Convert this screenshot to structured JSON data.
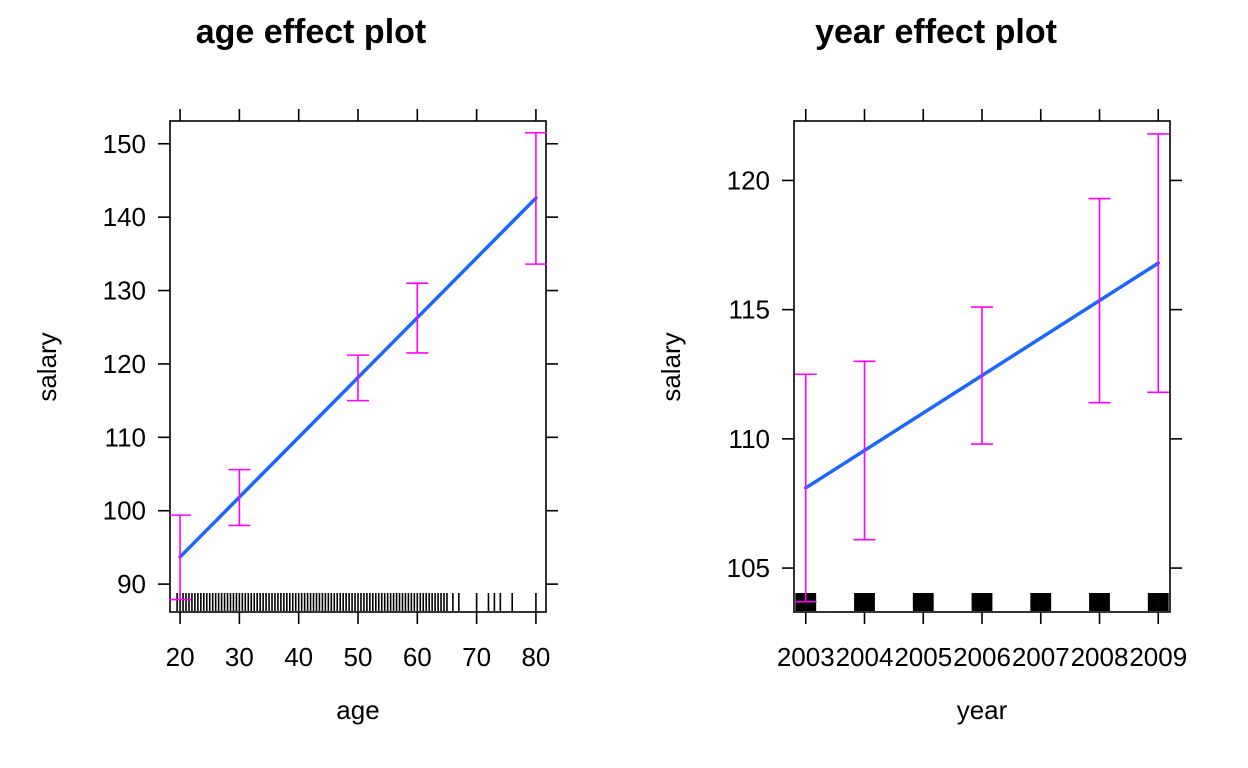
{
  "chart_data": [
    {
      "type": "line",
      "title": "age effect plot",
      "xlabel": "age",
      "ylabel": "salary",
      "xlim": [
        18.3,
        81.7
      ],
      "ylim": [
        86.2,
        153.1
      ],
      "x_ticks": [
        20,
        30,
        40,
        50,
        60,
        70,
        80
      ],
      "y_ticks": [
        90,
        100,
        110,
        120,
        130,
        140,
        150
      ],
      "grid": false,
      "legend": "none",
      "series": [
        {
          "x": [
            20,
            80
          ],
          "y": [
            93.7,
            142.6
          ],
          "color": "#1a66ff"
        }
      ],
      "error_bars": {
        "color": "#ff00ff",
        "points": [
          {
            "x": 20,
            "lower": 87.9,
            "upper": 99.4
          },
          {
            "x": 30,
            "lower": 98.0,
            "upper": 105.6
          },
          {
            "x": 50,
            "lower": 115.0,
            "upper": 121.2
          },
          {
            "x": 60,
            "lower": 121.5,
            "upper": 131.0
          },
          {
            "x": 80,
            "lower": 133.6,
            "upper": 151.5
          }
        ]
      },
      "rug": [
        19.5,
        20,
        20.5,
        21,
        21.5,
        22,
        22.5,
        23,
        23.5,
        24,
        24.5,
        25,
        25.5,
        26,
        26.5,
        27,
        27.5,
        28,
        28.5,
        29,
        29.5,
        30,
        30.5,
        31,
        31.5,
        32,
        32.5,
        33,
        33.5,
        34,
        34.5,
        35,
        35.5,
        36,
        36.5,
        37,
        37.5,
        38,
        38.5,
        39,
        39.5,
        40,
        40.5,
        41,
        41.5,
        42,
        42.5,
        43,
        43.5,
        44,
        44.5,
        45,
        45.5,
        46,
        46.5,
        47,
        47.5,
        48,
        48.5,
        49,
        49.5,
        50,
        50.5,
        51,
        51.5,
        52,
        52.5,
        53,
        53.5,
        54,
        54.5,
        55,
        55.5,
        56,
        56.5,
        57,
        57.5,
        58,
        58.5,
        59,
        59.5,
        60,
        60.5,
        61,
        61.5,
        62,
        62.5,
        63,
        63.5,
        64,
        64.5,
        65,
        66,
        67,
        70,
        72,
        73,
        74,
        76,
        80
      ]
    },
    {
      "type": "line",
      "title": "year effect plot",
      "xlabel": "year",
      "ylabel": "salary",
      "xlim": [
        2002.8,
        2009.2
      ],
      "ylim": [
        103.3,
        122.3
      ],
      "x_ticks": [
        2003,
        2004,
        2005,
        2006,
        2007,
        2008,
        2009
      ],
      "y_ticks": [
        105,
        110,
        115,
        120
      ],
      "grid": false,
      "legend": "none",
      "series": [
        {
          "x": [
            2003,
            2009
          ],
          "y": [
            108.1,
            116.8
          ],
          "color": "#1a66ff"
        }
      ],
      "error_bars": {
        "color": "#ff00ff",
        "points": [
          {
            "x": 2003,
            "lower": 103.7,
            "upper": 112.5
          },
          {
            "x": 2004,
            "lower": 106.1,
            "upper": 113.0
          },
          {
            "x": 2006,
            "lower": 109.8,
            "upper": 115.1
          },
          {
            "x": 2008,
            "lower": 111.4,
            "upper": 119.3
          },
          {
            "x": 2009,
            "lower": 111.8,
            "upper": 121.8
          }
        ]
      },
      "rug": [
        2002.85,
        2002.9,
        2002.95,
        2003,
        2003.05,
        2003.1,
        2003.15,
        2003.85,
        2003.9,
        2003.95,
        2004,
        2004.05,
        2004.1,
        2004.15,
        2004.85,
        2004.9,
        2004.95,
        2005,
        2005.05,
        2005.1,
        2005.15,
        2005.85,
        2005.9,
        2005.95,
        2006,
        2006.05,
        2006.1,
        2006.15,
        2006.85,
        2006.9,
        2006.95,
        2007,
        2007.05,
        2007.1,
        2007.15,
        2007.85,
        2007.9,
        2007.95,
        2008,
        2008.05,
        2008.1,
        2008.15,
        2008.85,
        2008.9,
        2008.95,
        2009,
        2009.05,
        2009.1,
        2009.15
      ]
    }
  ]
}
